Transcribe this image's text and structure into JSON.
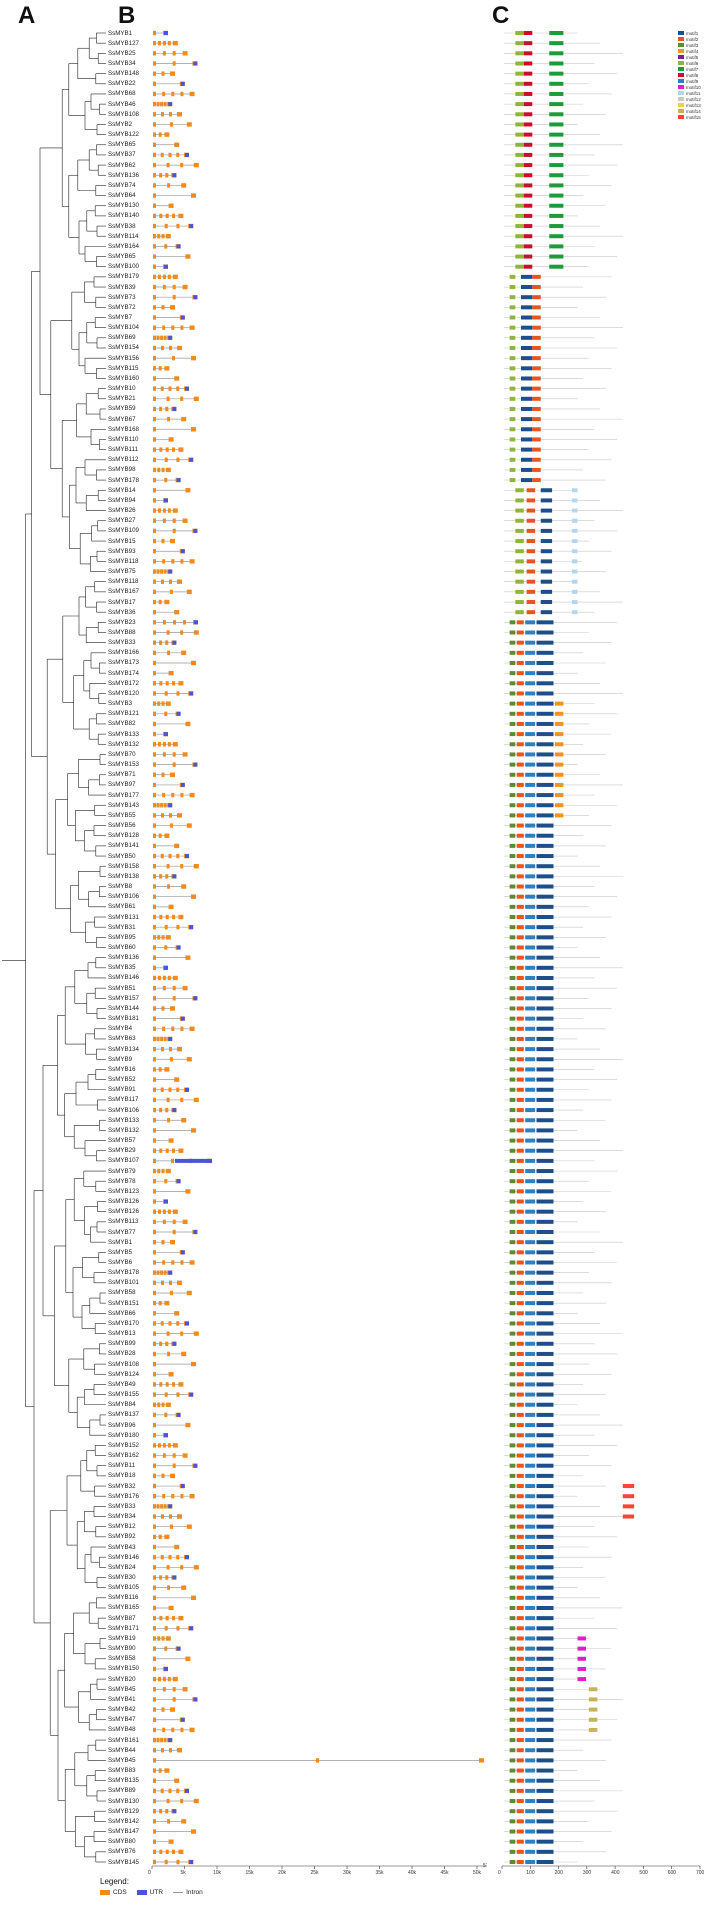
{
  "panels": {
    "a": "A",
    "b": "B",
    "c": "C"
  },
  "genes": [
    "SsMYB1",
    "SsMYB127",
    "SsMYB25",
    "SsMYB34",
    "SsMYB148",
    "SsMYB22",
    "SsMYB68",
    "SsMYB46",
    "SsMYB108",
    "SsMYB2",
    "SsMYB122",
    "SsMYB65",
    "SsMYB37",
    "SsMYB62",
    "SsMYB136",
    "SsMYB74",
    "SsMYB64",
    "SsMYB130",
    "SsMYB140",
    "SsMYB38",
    "SsMYB114",
    "SsMYB164",
    "SsMYB65",
    "SsMYB100",
    "SsMYB179",
    "SsMYB39",
    "SsMYB73",
    "SsMYB72",
    "SsMYB7",
    "SsMYB104",
    "SsMYB69",
    "SsMYB154",
    "SsMYB156",
    "SsMYB115",
    "SsMYB160",
    "SsMYB10",
    "SsMYB21",
    "SsMYB59",
    "SsMYB67",
    "SsMYB168",
    "SsMYB110",
    "SsMYB111",
    "SsMYB112",
    "SsMYB98",
    "SsMYB178",
    "SsMYB14",
    "SsMYB94",
    "SsMYB26",
    "SsMYB27",
    "SsMYB109",
    "SsMYB15",
    "SsMYB93",
    "SsMYB118",
    "SsMYB75",
    "SsMYB118",
    "SsMYB167",
    "SsMYB17",
    "SsMYB36",
    "SsMYB23",
    "SsMYB88",
    "SsMYB33",
    "SsMYB166",
    "SsMYB173",
    "SsMYB174",
    "SsMYB172",
    "SsMYB120",
    "SsMYB3",
    "SsMYB121",
    "SsMYB82",
    "SsMYB133",
    "SsMYB132",
    "SsMYB70",
    "SsMYB153",
    "SsMYB71",
    "SsMYB97",
    "SsMYB177",
    "SsMYB143",
    "SsMYB55",
    "SsMYB56",
    "SsMYB128",
    "SsMYB141",
    "SsMYB50",
    "SsMYB158",
    "SsMYB138",
    "SsMYB8",
    "SsMYB106",
    "SsMYB61",
    "SsMYB131",
    "SsMYB31",
    "SsMYB95",
    "SsMYB60",
    "SsMYB136",
    "SsMYB35",
    "SsMYB146",
    "SsMYB51",
    "SsMYB157",
    "SsMYB144",
    "SsMYB181",
    "SsMYB4",
    "SsMYB63",
    "SsMYB134",
    "SsMYB9",
    "SsMYB16",
    "SsMYB52",
    "SsMYB91",
    "SsMYB117",
    "SsMYB106",
    "SsMYB133",
    "SsMYB132",
    "SsMYB57",
    "SsMYB29",
    "SsMYB107",
    "SsMYB79",
    "SsMYB78",
    "SsMYB123",
    "SsMYB126",
    "SsMYB126",
    "SsMYB113",
    "SsMYB77",
    "SsMYB1",
    "SsMYB5",
    "SsMYB6",
    "SsMYB178",
    "SsMYB101",
    "SsMYB58",
    "SsMYB151",
    "SsMYB66",
    "SsMYB170",
    "SsMYB13",
    "SsMYB99",
    "SsMYB28",
    "SsMYB108",
    "SsMYB124",
    "SsMYB49",
    "SsMYB155",
    "SsMYB84",
    "SsMYB137",
    "SsMYB96",
    "SsMYB180",
    "SsMYB152",
    "SsMYB162",
    "SsMYB11",
    "SsMYB18",
    "SsMYB32",
    "SsMYB176",
    "SsMYB33",
    "SsMYB34",
    "SsMYB12",
    "SsMYB92",
    "SsMYB43",
    "SsMYB146",
    "SsMYB24",
    "SsMYB30",
    "SsMYB105",
    "SsMYB116",
    "SsMYB165",
    "SsMYB87",
    "SsMYB171",
    "SsMYB19",
    "SsMYB90",
    "SsMYB58",
    "SsMYB150",
    "SsMYB20",
    "SsMYB45",
    "SsMYB41",
    "SsMYB42",
    "SsMYB47",
    "SsMYB48",
    "SsMYB161",
    "SsMYB44",
    "SsMYB45",
    "SsMYB83",
    "SsMYB135",
    "SsMYB89",
    "SsMYB130",
    "SsMYB129",
    "SsMYB142",
    "SsMYB147",
    "SsMYB80",
    "SsMYB76",
    "SsMYB145"
  ],
  "axis_b": {
    "ticks": [
      "0",
      "5k",
      "10k",
      "15k",
      "20k",
      "25k",
      "30k",
      "35k",
      "40k",
      "45k",
      "50k"
    ],
    "end": "5'"
  },
  "axis_c": {
    "ticks": [
      "0",
      "100",
      "200",
      "300",
      "400",
      "500",
      "600",
      "700"
    ]
  },
  "legend_b": {
    "title": "Legend:",
    "items": [
      {
        "label": "CDS",
        "color": "#f28a1e"
      },
      {
        "label": "UTR",
        "color": "#4a55d6"
      },
      {
        "label": "Intron",
        "color": "#999999"
      }
    ]
  },
  "motif_legend": {
    "items": [
      {
        "label": "motif1",
        "color": "#1d4e89"
      },
      {
        "label": "motif2",
        "color": "#e8541e"
      },
      {
        "label": "motif3",
        "color": "#5e8b2b"
      },
      {
        "label": "motif4",
        "color": "#f29220"
      },
      {
        "label": "motif5",
        "color": "#7a1f8a"
      },
      {
        "label": "motif6",
        "color": "#8fb63a"
      },
      {
        "label": "motif7",
        "color": "#1d9a3a"
      },
      {
        "label": "motif8",
        "color": "#c8102e"
      },
      {
        "label": "motif9",
        "color": "#2b7fc4"
      },
      {
        "label": "motif10",
        "color": "#e31bd0"
      },
      {
        "label": "motif11",
        "color": "#b5d7ee"
      },
      {
        "label": "motif12",
        "color": "#c9c9c9"
      },
      {
        "label": "motif13",
        "color": "#f4d03f"
      },
      {
        "label": "motif14",
        "color": "#c5b358"
      },
      {
        "label": "motif15",
        "color": "#ff4136"
      }
    ]
  }
}
